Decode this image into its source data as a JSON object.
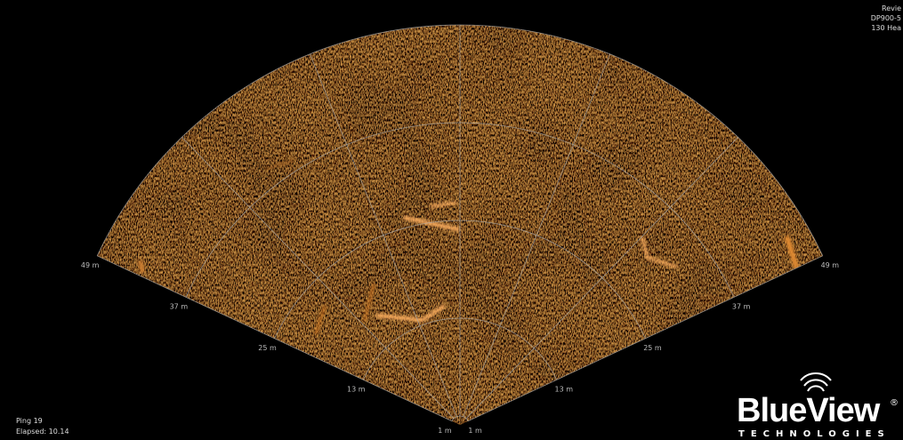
{
  "status": {
    "lines": [
      "Revie",
      "DP900-5",
      "130 Hea"
    ]
  },
  "ping": {
    "ping": "Ping 19",
    "elapsed": "Elapsed: 10.14"
  },
  "sonar": {
    "range_labels": [
      "1 m",
      "13 m",
      "25 m",
      "37 m",
      "49 m"
    ]
  },
  "logo": {
    "name": "BlueView",
    "mark": "®",
    "sub": "TECHNOLOGIES"
  }
}
